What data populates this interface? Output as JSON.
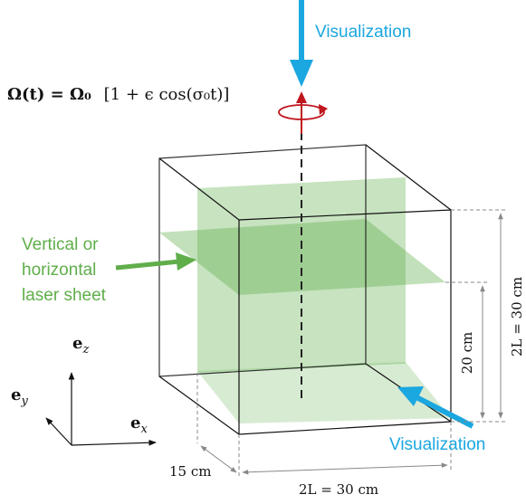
{
  "equation": {
    "lhs": "Ω(t) = Ω₀",
    "rhs": "[1 + ϵ cos(σ₀t)]"
  },
  "labels": {
    "visualization_top": "Visualization",
    "visualization_side": "Visualization",
    "laser_line1": "Vertical or",
    "laser_line2": "horizontal",
    "laser_line3": "laser sheet"
  },
  "dimensions": {
    "width": "2L = 30 cm",
    "height": "2L = 30 cm",
    "sheet_height": "20 cm",
    "depth": "15 cm"
  },
  "axes": {
    "ez": "e_z",
    "ey": "e_y",
    "ex": "e_x"
  },
  "colors": {
    "visualization": "#1ba7e0",
    "laser": "#5fae4a",
    "rotation": "#c0161e"
  }
}
